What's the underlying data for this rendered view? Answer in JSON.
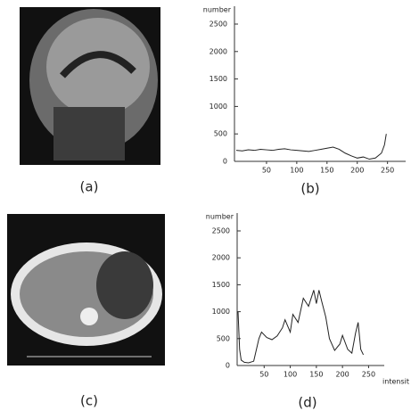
{
  "chart_data": [
    {
      "type": "line",
      "y_label": "number",
      "x": [
        0,
        10,
        20,
        30,
        40,
        50,
        60,
        70,
        80,
        90,
        100,
        110,
        120,
        130,
        140,
        150,
        160,
        170,
        180,
        190,
        200,
        210,
        220,
        230,
        240,
        245,
        248
      ],
      "values": [
        200,
        190,
        210,
        200,
        220,
        210,
        200,
        220,
        230,
        210,
        200,
        190,
        180,
        200,
        220,
        240,
        260,
        220,
        150,
        100,
        60,
        80,
        40,
        60,
        150,
        300,
        500
      ],
      "color": "#222222",
      "xlim": [
        0,
        280
      ],
      "ylim": [
        0,
        2500
      ],
      "xticks": [
        50,
        100,
        150,
        200,
        250
      ],
      "yticks": [
        0,
        500,
        1000,
        1500,
        2000,
        2500
      ]
    },
    {
      "type": "line",
      "y_label": "number",
      "x_label": "intensit",
      "x": [
        0,
        3,
        6,
        12,
        20,
        30,
        40,
        45,
        55,
        65,
        75,
        85,
        90,
        100,
        105,
        115,
        125,
        135,
        145,
        150,
        155,
        160,
        168,
        175,
        185,
        195,
        200,
        210,
        218,
        225,
        230,
        235,
        240
      ],
      "values": [
        1000,
        300,
        100,
        60,
        50,
        80,
        500,
        620,
        520,
        480,
        550,
        700,
        850,
        620,
        950,
        800,
        1250,
        1100,
        1400,
        1150,
        1400,
        1200,
        900,
        500,
        280,
        400,
        560,
        300,
        230,
        600,
        800,
        300,
        200
      ],
      "color": "#222222",
      "xlim": [
        0,
        280
      ],
      "ylim": [
        0,
        2500
      ],
      "xticks": [
        50,
        100,
        150,
        200,
        250
      ],
      "yticks": [
        0,
        500,
        1000,
        1500,
        2000,
        2500
      ]
    }
  ],
  "figure": {
    "captions": [
      "(a)",
      "(b)",
      "(c)",
      "(d)"
    ]
  }
}
